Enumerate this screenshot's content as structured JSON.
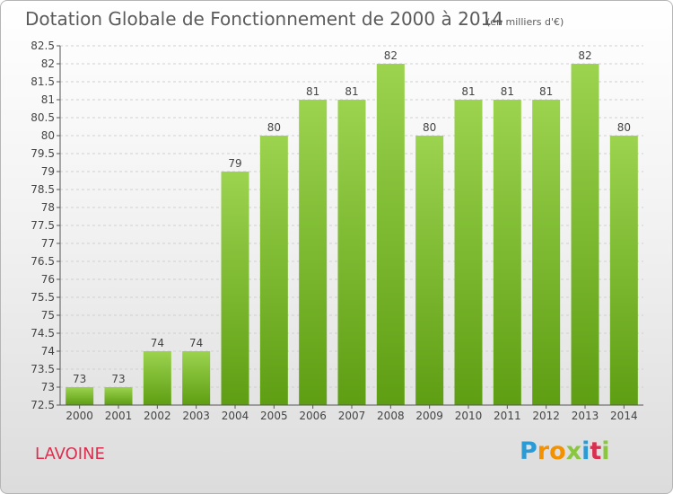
{
  "colors": {
    "bar_top": "#9cd34f",
    "bar_bottom": "#5e9e13",
    "grid": "#d0d0d0",
    "axis": "#555555",
    "commune": "#d9304f"
  },
  "footer": {
    "commune": "LAVOINE",
    "logo_letters": [
      "P",
      "r",
      "o",
      "x",
      "i",
      "t",
      "i"
    ]
  },
  "chart_data": {
    "type": "bar",
    "title": "Dotation Globale de Fonctionnement de 2000 à 2014",
    "unit_note": "(en milliers d'€)",
    "xlabel": "",
    "ylabel": "",
    "categories": [
      "2000",
      "2001",
      "2002",
      "2003",
      "2004",
      "2005",
      "2006",
      "2007",
      "2008",
      "2009",
      "2010",
      "2011",
      "2012",
      "2013",
      "2014"
    ],
    "values": [
      73,
      73,
      74,
      74,
      79,
      80,
      81,
      81,
      82,
      80,
      81,
      81,
      81,
      82,
      80
    ],
    "data_labels": [
      "73",
      "73",
      "74",
      "74",
      "79",
      "80",
      "81",
      "81",
      "82",
      "80",
      "81",
      "81",
      "81",
      "82",
      "80"
    ],
    "ylim": [
      72.5,
      82.5
    ],
    "yticks": [
      "72.5",
      "73",
      "73.5",
      "74",
      "74.5",
      "75",
      "75.5",
      "76",
      "76.5",
      "77",
      "77.5",
      "78",
      "78.5",
      "79",
      "79.5",
      "80",
      "80.5",
      "81",
      "81.5",
      "82",
      "82.5"
    ],
    "grid": true
  }
}
